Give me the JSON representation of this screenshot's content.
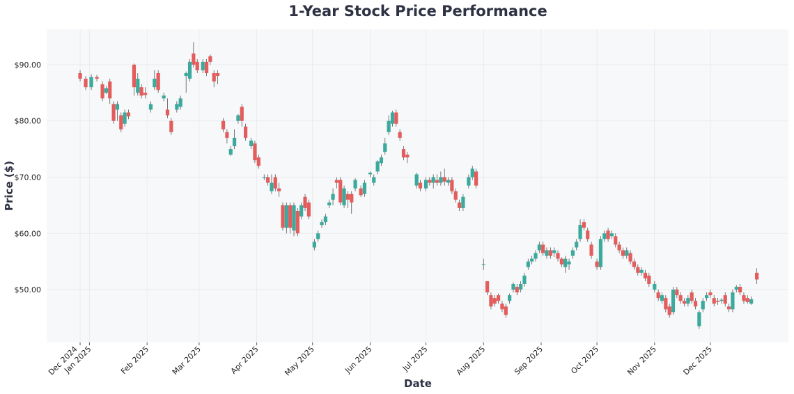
{
  "chart_data": {
    "type": "candlestick",
    "title": "1-Year Stock Price Performance",
    "xlabel": "Date",
    "ylabel": "Price ($)",
    "x_range": [
      "2024-12-09",
      "2026-01-12"
    ],
    "ylim": [
      40.6,
      96.3
    ],
    "grid": true,
    "colors": {
      "up": "#3ba99c",
      "down": "#e35d5d",
      "background": "#f7f8fa",
      "grid": "#e6e8ec",
      "title": "#2d3142"
    },
    "y_ticks": [
      {
        "value": 50,
        "label": "$50.00"
      },
      {
        "value": 60,
        "label": "$60.00"
      },
      {
        "value": 70,
        "label": "$70.00"
      },
      {
        "value": 80,
        "label": "$80.00"
      },
      {
        "value": 90,
        "label": "$90.00"
      }
    ],
    "x_ticks": [
      {
        "date": "2024-12-27",
        "label": "Dec 2024"
      },
      {
        "date": "2025-01-01",
        "label": "Jan 2025"
      },
      {
        "date": "2025-02-01",
        "label": "Feb 2025"
      },
      {
        "date": "2025-03-01",
        "label": "Mar 2025"
      },
      {
        "date": "2025-04-01",
        "label": "Apr 2025"
      },
      {
        "date": "2025-05-01",
        "label": "May 2025"
      },
      {
        "date": "2025-06-01",
        "label": "Jun 2025"
      },
      {
        "date": "2025-07-01",
        "label": "Jul 2025"
      },
      {
        "date": "2025-08-01",
        "label": "Aug 2025"
      },
      {
        "date": "2025-09-01",
        "label": "Sep 2025"
      },
      {
        "date": "2025-10-01",
        "label": "Oct 2025"
      },
      {
        "date": "2025-11-01",
        "label": "Nov 2025"
      },
      {
        "date": "2025-12-01",
        "label": "Dec 2025"
      }
    ],
    "columns": [
      "date",
      "open",
      "high",
      "low",
      "close"
    ],
    "candles": [
      [
        "2024-12-27",
        88.5,
        89,
        87,
        87.5
      ],
      [
        "2024-12-30",
        87.5,
        88,
        85.5,
        86
      ],
      [
        "2025-01-02",
        86,
        88.3,
        85.5,
        87.8
      ],
      [
        "2025-01-05",
        87.8,
        88.2,
        87,
        87.5
      ],
      [
        "2025-01-08",
        86.5,
        87,
        83.5,
        84
      ],
      [
        "2025-01-10",
        85,
        86.2,
        84.8,
        85.8
      ],
      [
        "2025-01-12",
        87,
        87.5,
        83,
        84
      ],
      [
        "2025-01-14",
        83,
        83.5,
        79.5,
        80
      ],
      [
        "2025-01-16",
        82,
        83.5,
        80,
        83
      ],
      [
        "2025-01-18",
        81,
        81.5,
        78,
        78.5
      ],
      [
        "2025-01-20",
        79.5,
        82,
        79,
        81.5
      ],
      [
        "2025-01-22",
        81.5,
        82,
        80.3,
        80.8
      ],
      [
        "2025-01-25",
        90,
        90.2,
        84.5,
        86
      ],
      [
        "2025-01-27",
        85,
        88.5,
        84.5,
        87.5
      ],
      [
        "2025-01-29",
        86,
        86.5,
        84,
        84.5
      ],
      [
        "2025-01-31",
        85,
        86,
        84,
        84.6
      ],
      [
        "2025-02-03",
        82,
        83.5,
        81.5,
        83
      ],
      [
        "2025-02-05",
        86,
        89,
        85.5,
        87.5
      ],
      [
        "2025-02-07",
        88.5,
        89,
        85,
        85.5
      ],
      [
        "2025-02-10",
        84,
        85,
        83.5,
        84.5
      ],
      [
        "2025-02-12",
        82,
        84,
        80.5,
        81
      ],
      [
        "2025-02-14",
        80,
        80.5,
        77.5,
        78
      ],
      [
        "2025-02-17",
        82,
        83.5,
        81.5,
        83
      ],
      [
        "2025-02-19",
        82.5,
        84.5,
        82,
        84
      ],
      [
        "2025-02-22",
        88,
        88.8,
        85,
        88.5
      ],
      [
        "2025-02-24",
        87.5,
        91,
        87,
        90.5
      ],
      [
        "2025-02-26",
        92,
        94,
        89.5,
        90
      ],
      [
        "2025-02-28",
        90.5,
        91,
        88.5,
        89
      ],
      [
        "2025-03-03",
        89,
        91,
        88.5,
        90.5
      ],
      [
        "2025-03-05",
        90.5,
        91,
        88,
        88.5
      ],
      [
        "2025-03-07",
        91.5,
        91.8,
        90,
        90.5
      ],
      [
        "2025-03-09",
        88.5,
        89,
        86,
        87
      ],
      [
        "2025-03-11",
        88.5,
        89,
        86.5,
        88
      ],
      [
        "2025-03-14",
        80,
        80.5,
        78,
        78.5
      ],
      [
        "2025-03-16",
        78,
        78.5,
        76,
        77
      ],
      [
        "2025-03-18",
        74,
        75.5,
        73.8,
        75
      ],
      [
        "2025-03-20",
        75.5,
        78.5,
        75,
        77
      ],
      [
        "2025-03-22",
        80,
        81.2,
        79.5,
        81
      ],
      [
        "2025-03-24",
        82.5,
        83,
        79,
        80
      ],
      [
        "2025-03-26",
        79,
        79.5,
        76.5,
        77
      ],
      [
        "2025-03-29",
        75.5,
        77,
        75,
        76.5
      ],
      [
        "2025-03-31",
        76,
        76.5,
        72.5,
        73
      ],
      [
        "2025-04-02",
        73.5,
        74,
        71.5,
        72
      ],
      [
        "2025-04-05",
        70,
        70.5,
        69.5,
        70
      ],
      [
        "2025-04-07",
        70,
        70.5,
        68.5,
        69
      ],
      [
        "2025-04-09",
        67.5,
        70.5,
        67,
        69
      ],
      [
        "2025-04-11",
        70,
        70.5,
        67.5,
        68
      ],
      [
        "2025-04-13",
        68,
        69,
        66.5,
        67.5
      ],
      [
        "2025-04-15",
        65,
        65.5,
        60.5,
        61
      ],
      [
        "2025-04-17",
        61,
        65.5,
        60,
        65
      ],
      [
        "2025-04-19",
        65,
        65.5,
        60,
        61
      ],
      [
        "2025-04-21",
        60.5,
        65.5,
        59.5,
        65
      ],
      [
        "2025-04-23",
        64,
        64.5,
        59.5,
        60
      ],
      [
        "2025-04-25",
        63,
        65.5,
        62.5,
        65
      ],
      [
        "2025-04-27",
        66.5,
        67,
        64,
        64.5
      ],
      [
        "2025-04-29",
        65.5,
        66,
        62.5,
        63
      ],
      [
        "2025-05-02",
        57.5,
        59,
        57,
        58.5
      ],
      [
        "2025-05-04",
        59,
        60.5,
        58.5,
        60
      ],
      [
        "2025-05-06",
        61.5,
        62.5,
        61,
        62
      ],
      [
        "2025-05-08",
        62,
        63.5,
        61.5,
        63
      ],
      [
        "2025-05-10",
        65,
        66,
        64.5,
        65.5
      ],
      [
        "2025-05-12",
        66,
        68,
        65,
        67
      ],
      [
        "2025-05-14",
        69.5,
        70,
        68,
        69
      ],
      [
        "2025-05-16",
        69.5,
        70,
        65,
        65.5
      ],
      [
        "2025-05-18",
        65,
        68.5,
        64.5,
        68
      ],
      [
        "2025-05-20",
        67,
        67.5,
        64.5,
        66
      ],
      [
        "2025-05-22",
        67,
        67.5,
        63.5,
        65.5
      ],
      [
        "2025-05-24",
        68,
        69.8,
        67.5,
        69.5
      ],
      [
        "2025-05-27",
        68,
        68.5,
        66.5,
        66.8
      ],
      [
        "2025-05-29",
        67,
        69.5,
        66.5,
        69
      ],
      [
        "2025-06-01",
        70.5,
        71,
        70,
        70.8
      ],
      [
        "2025-06-03",
        69,
        70.5,
        68.5,
        70
      ],
      [
        "2025-06-05",
        71,
        73,
        70.5,
        72.8
      ],
      [
        "2025-06-07",
        72.5,
        74,
        72,
        73.5
      ],
      [
        "2025-06-09",
        74.5,
        77,
        74,
        76
      ],
      [
        "2025-06-11",
        78,
        81,
        77.5,
        80
      ],
      [
        "2025-06-13",
        79.5,
        81.8,
        79,
        81.5
      ],
      [
        "2025-06-15",
        81.5,
        82,
        79,
        79.5
      ],
      [
        "2025-06-17",
        78,
        78.5,
        76.5,
        77
      ],
      [
        "2025-06-19",
        75,
        75.5,
        73,
        73.5
      ],
      [
        "2025-06-21",
        74,
        74.5,
        72.5,
        73.5
      ],
      [
        "2025-06-26",
        68.5,
        70.8,
        68,
        70.5
      ],
      [
        "2025-06-28",
        69,
        69.5,
        67.5,
        68
      ],
      [
        "2025-07-01",
        68,
        70,
        67.5,
        69.5
      ],
      [
        "2025-07-03",
        69.5,
        70,
        68.5,
        69
      ],
      [
        "2025-07-05",
        69,
        70.5,
        68,
        70
      ],
      [
        "2025-07-07",
        69.5,
        70.5,
        68.5,
        69
      ],
      [
        "2025-07-09",
        69,
        71,
        68.5,
        70
      ],
      [
        "2025-07-11",
        70,
        71.5,
        68.5,
        69.2
      ],
      [
        "2025-07-13",
        69,
        70,
        68.5,
        69.5
      ],
      [
        "2025-07-15",
        69.5,
        70,
        67,
        67.5
      ],
      [
        "2025-07-17",
        67.5,
        68,
        65.5,
        66
      ],
      [
        "2025-07-19",
        65.5,
        66,
        64,
        64.5
      ],
      [
        "2025-07-21",
        64.5,
        67,
        64,
        66.5
      ],
      [
        "2025-07-24",
        68.5,
        70.5,
        68,
        70
      ],
      [
        "2025-07-26",
        70,
        72,
        69.5,
        71.5
      ],
      [
        "2025-07-28",
        71,
        71.5,
        68,
        68.5
      ],
      [
        "2025-08-01",
        54.5,
        55.5,
        53.5,
        54.5
      ],
      [
        "2025-08-03",
        51.5,
        51.5,
        49,
        49.5
      ],
      [
        "2025-08-05",
        49,
        49.5,
        46.5,
        47
      ],
      [
        "2025-08-07",
        48.5,
        49,
        47,
        47.5
      ],
      [
        "2025-08-09",
        49,
        49.3,
        47.5,
        48
      ],
      [
        "2025-08-11",
        47.5,
        48,
        46,
        46.5
      ],
      [
        "2025-08-13",
        47,
        47.5,
        45,
        45.5
      ],
      [
        "2025-08-15",
        48,
        49.3,
        47.5,
        49
      ],
      [
        "2025-08-17",
        50,
        51.3,
        49.5,
        51
      ],
      [
        "2025-08-19",
        50.5,
        51,
        49,
        49.5
      ],
      [
        "2025-08-21",
        50,
        51.5,
        49.5,
        51
      ],
      [
        "2025-08-23",
        51,
        53,
        50.5,
        52.5
      ],
      [
        "2025-08-25",
        54,
        55.5,
        53.5,
        55
      ],
      [
        "2025-08-27",
        55,
        56,
        54.5,
        55.5
      ],
      [
        "2025-08-29",
        55.5,
        57,
        55,
        56.5
      ],
      [
        "2025-08-31",
        57,
        58.5,
        56.5,
        58
      ],
      [
        "2025-09-02",
        58,
        58.5,
        56,
        56.5
      ],
      [
        "2025-09-04",
        56,
        57.5,
        55.5,
        57
      ],
      [
        "2025-09-06",
        57,
        57.5,
        55.5,
        56
      ],
      [
        "2025-09-08",
        56.5,
        57.5,
        55.8,
        57
      ],
      [
        "2025-09-10",
        56.5,
        57,
        55,
        55.5
      ],
      [
        "2025-09-12",
        55.5,
        55.8,
        54,
        54.5
      ],
      [
        "2025-09-14",
        54,
        56,
        53,
        55.5
      ],
      [
        "2025-09-16",
        54.5,
        55.5,
        53.5,
        55
      ],
      [
        "2025-09-18",
        56,
        57.5,
        55.5,
        57
      ],
      [
        "2025-09-20",
        57.5,
        59,
        57,
        58.5
      ],
      [
        "2025-09-22",
        59,
        62.5,
        58.5,
        61.5
      ],
      [
        "2025-09-24",
        62,
        62.5,
        60.5,
        61
      ],
      [
        "2025-09-26",
        60.5,
        61,
        58.5,
        59
      ],
      [
        "2025-09-28",
        58,
        58.5,
        55.5,
        56
      ],
      [
        "2025-10-01",
        55,
        55.5,
        53.5,
        54
      ],
      [
        "2025-10-03",
        54,
        59.5,
        53.5,
        59
      ],
      [
        "2025-10-05",
        59,
        60.5,
        58.5,
        60
      ],
      [
        "2025-10-07",
        60.5,
        61,
        58.5,
        59
      ],
      [
        "2025-10-09",
        59.5,
        60.5,
        59,
        60
      ],
      [
        "2025-10-11",
        59.5,
        60,
        57.5,
        58
      ],
      [
        "2025-10-13",
        58,
        58.5,
        56.5,
        57
      ],
      [
        "2025-10-15",
        57,
        57.5,
        55.5,
        56
      ],
      [
        "2025-10-17",
        56,
        57.5,
        55.5,
        57
      ],
      [
        "2025-10-19",
        56.5,
        57,
        54.5,
        55
      ],
      [
        "2025-10-21",
        55,
        55.5,
        53.5,
        54
      ],
      [
        "2025-10-23",
        54,
        54.5,
        52.5,
        53
      ],
      [
        "2025-10-25",
        53,
        54,
        52.5,
        53.5
      ],
      [
        "2025-10-27",
        53,
        53.5,
        51.5,
        52
      ],
      [
        "2025-10-29",
        52.5,
        53,
        50.5,
        51
      ],
      [
        "2025-11-01",
        50,
        51.5,
        49.5,
        51
      ],
      [
        "2025-11-03",
        49.5,
        50,
        48,
        48.5
      ],
      [
        "2025-11-05",
        48,
        49.5,
        47.5,
        49
      ],
      [
        "2025-11-07",
        48.5,
        49,
        46,
        46.5
      ],
      [
        "2025-11-09",
        47,
        47.5,
        45,
        45.5
      ],
      [
        "2025-11-11",
        46,
        50.5,
        45.5,
        50
      ],
      [
        "2025-11-13",
        50,
        50.5,
        48.5,
        49
      ],
      [
        "2025-11-15",
        49,
        49.5,
        47.5,
        48
      ],
      [
        "2025-11-17",
        48,
        48.5,
        47,
        47.5
      ],
      [
        "2025-11-19",
        47.5,
        49,
        47,
        48.5
      ],
      [
        "2025-11-21",
        49.5,
        50,
        47.5,
        48
      ],
      [
        "2025-11-23",
        48,
        48.5,
        46.5,
        47
      ],
      [
        "2025-11-25",
        43.5,
        46.3,
        43,
        46
      ],
      [
        "2025-11-27",
        46.5,
        48.5,
        46,
        48
      ],
      [
        "2025-11-29",
        48.5,
        49.5,
        48,
        49
      ],
      [
        "2025-12-01",
        49.5,
        50,
        48.5,
        49
      ],
      [
        "2025-12-03",
        48.5,
        49,
        47,
        47.5
      ],
      [
        "2025-12-05",
        48,
        48.5,
        47.3,
        47.8
      ],
      [
        "2025-12-07",
        48,
        48.5,
        47.5,
        48.2
      ],
      [
        "2025-12-09",
        49,
        49.5,
        47,
        47.5
      ],
      [
        "2025-12-11",
        47,
        47.5,
        46,
        46.5
      ],
      [
        "2025-12-13",
        46.5,
        50,
        46,
        49.5
      ],
      [
        "2025-12-15",
        50,
        50.8,
        49.5,
        50.5
      ],
      [
        "2025-12-17",
        50.5,
        51,
        49,
        49.5
      ],
      [
        "2025-12-19",
        49,
        49.5,
        47.5,
        48
      ],
      [
        "2025-12-21",
        48.5,
        49,
        47.5,
        47.8
      ],
      [
        "2025-12-23",
        47.5,
        48.8,
        47.3,
        48.3
      ],
      [
        "2025-12-26",
        53,
        53.8,
        51,
        51.8
      ]
    ]
  }
}
